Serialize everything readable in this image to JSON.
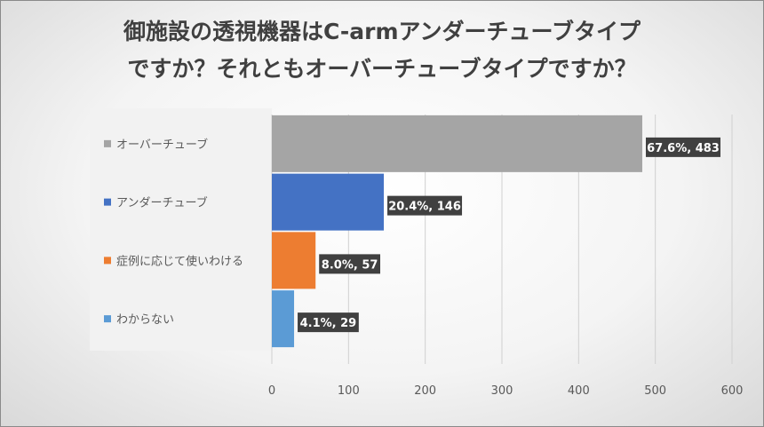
{
  "chart_data": {
    "type": "bar",
    "orientation": "horizontal",
    "title_lines": [
      "御施設の透視機器はC-armアンダーチューブタイプ",
      "ですか？それともオーバーチューブタイプですか？"
    ],
    "categories": [
      "オーバーチューブ",
      "アンダーチューブ",
      "症例に応じて使いわける",
      "わからない"
    ],
    "values": [
      483,
      146,
      57,
      29
    ],
    "percent_labels": [
      "67.6%",
      "20.4%",
      "8.0%",
      "4.1%"
    ],
    "data_labels": [
      "67.6%, 483",
      "20.4%, 146",
      "8.0%, 57",
      "4.1%, 29"
    ],
    "colors": [
      "#a5a5a5",
      "#4472c4",
      "#ed7d31",
      "#5b9bd5"
    ],
    "xlim": [
      0,
      600
    ],
    "xticks": [
      "0",
      "100",
      "200",
      "300",
      "400",
      "500",
      "600"
    ],
    "grid": true,
    "xlabel": "",
    "ylabel": ""
  }
}
